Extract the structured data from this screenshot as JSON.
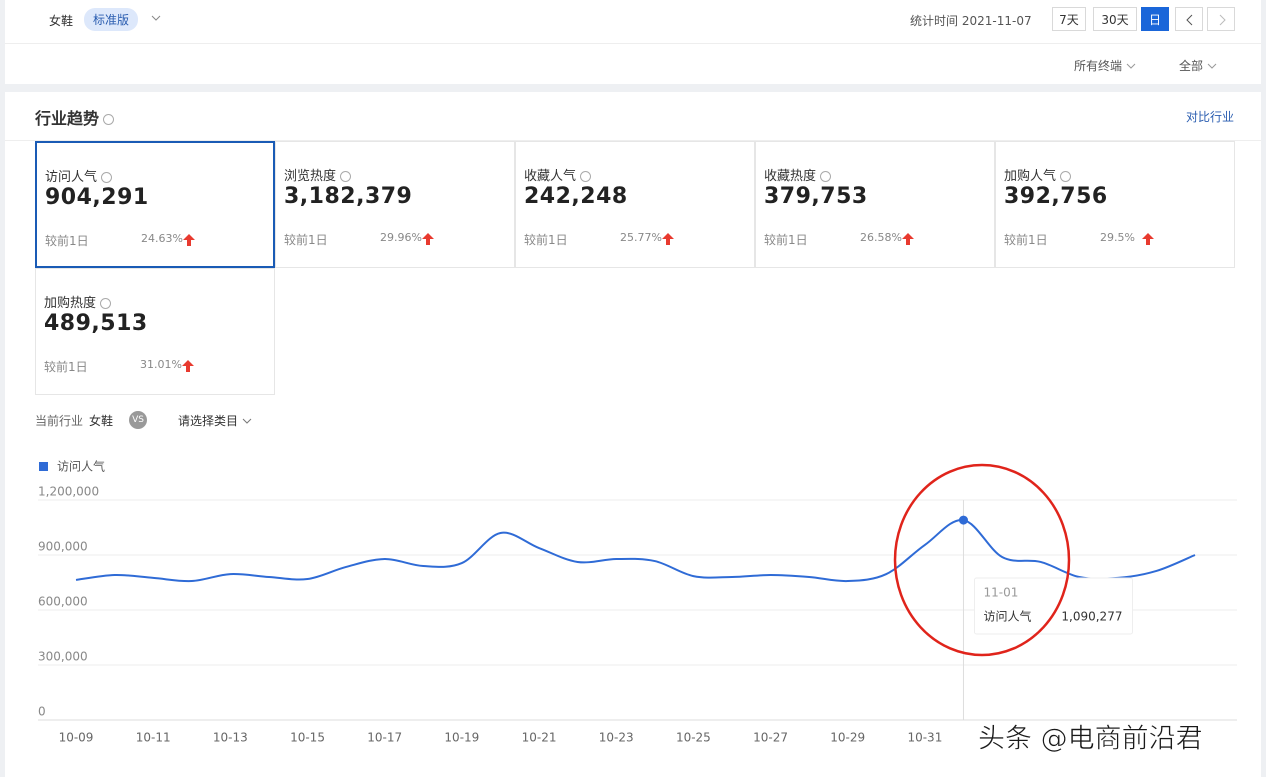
{
  "header": {
    "category": "女鞋",
    "edition": "标准版",
    "stat_time_label": "统计时间",
    "stat_date": "2021-11-07",
    "ranges": [
      "7天",
      "30天",
      "日"
    ],
    "terminal": "所有终端",
    "scope": "全部"
  },
  "section": {
    "title": "行业趋势",
    "compare": "对比行业"
  },
  "metrics": [
    {
      "label": "访问人气",
      "value": "904,291",
      "compare_label": "较前1日",
      "change": "24.63%"
    },
    {
      "label": "浏览热度",
      "value": "3,182,379",
      "compare_label": "较前1日",
      "change": "29.96%"
    },
    {
      "label": "收藏人气",
      "value": "242,248",
      "compare_label": "较前1日",
      "change": "25.77%"
    },
    {
      "label": "收藏热度",
      "value": "379,753",
      "compare_label": "较前1日",
      "change": "26.58%"
    },
    {
      "label": "加购人气",
      "value": "392,756",
      "compare_label": "较前1日",
      "change": "29.5%"
    },
    {
      "label": "加购热度",
      "value": "489,513",
      "compare_label": "较前1日",
      "change": "31.01%"
    }
  ],
  "filter": {
    "label": "当前行业",
    "industry": "女鞋",
    "vs": "VS",
    "select": "请选择类目"
  },
  "chart_data": {
    "type": "line",
    "categories": [
      "10-09",
      null,
      "10-11",
      null,
      "10-13",
      null,
      "10-15",
      null,
      "10-17",
      null,
      "10-19",
      null,
      "10-21",
      null,
      "10-23",
      null,
      "10-25",
      null,
      "10-27",
      null,
      "10-29",
      null,
      "10-31",
      null,
      null,
      null,
      null,
      null,
      null,
      null
    ],
    "series": [
      {
        "name": "访问人气",
        "color": "#2f6bd6",
        "values": [
          764000,
          791000,
          775000,
          758000,
          796000,
          780000,
          769000,
          835000,
          878000,
          840000,
          856000,
          1020000,
          938000,
          862000,
          878000,
          867000,
          785000,
          780000,
          791000,
          780000,
          758000,
          796000,
          955000,
          1090277,
          889000,
          862000,
          780000,
          775000,
          813000,
          900000
        ]
      }
    ],
    "ylim": [
      0,
      1200000
    ],
    "yticks": [
      0,
      {
        "value": 300000,
        "label": "300,000"
      },
      {
        "value": 600000,
        "label": "600,000"
      },
      {
        "value": 900000,
        "label": "900,000"
      },
      {
        "value": 1200000,
        "label": "1,200,000"
      }
    ],
    "grid": true,
    "legend": "top-left",
    "tooltip": {
      "date": "11-01",
      "series": "访问人气",
      "value": 1090277,
      "value_label": "1,090,277"
    }
  },
  "watermark": "头条 @电商前沿君"
}
